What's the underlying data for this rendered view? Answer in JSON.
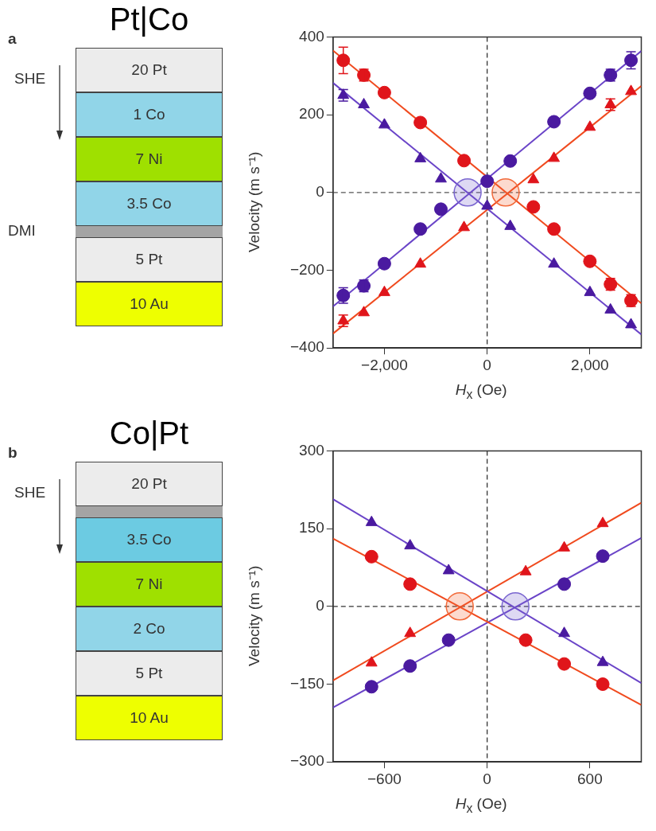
{
  "chart_data": [
    {
      "type": "other",
      "title": "Pt|Co",
      "categories": [
        "20 Pt",
        "1 Co",
        "7 Ni",
        "3.5 Co",
        null,
        "5 Pt",
        "10 Au"
      ],
      "colors": [
        "#ececec",
        "#91d5e8",
        "#9fe000",
        "#91d5e8",
        "#a4a4a4",
        "#ececec",
        "#eeff00"
      ],
      "annotations": [
        "a",
        "SHE",
        "DMI"
      ]
    },
    {
      "type": "scatter",
      "xlabel": "H$_{x}$ (Oe)",
      "ylabel": "Velocity (m s⁻¹)",
      "xlim": [
        -3000,
        3000
      ],
      "ylim": [
        -400,
        400
      ],
      "xticks": [
        {
          "value": -2000,
          "label": "−2,000"
        },
        {
          "value": 0,
          "label": "0"
        },
        {
          "value": 2000,
          "label": "2,000"
        }
      ],
      "yticks": [
        {
          "value": -400,
          "label": "−400"
        },
        {
          "value": -200,
          "label": "−200"
        },
        {
          "value": 0,
          "label": "0"
        },
        200,
        400
      ],
      "ref_lines": [
        {
          "axis": "x",
          "value": 0,
          "line_style": "dashed",
          "color": "#333333"
        },
        {
          "axis": "y",
          "value": 0,
          "line_style": "dashed",
          "color": "#555555"
        }
      ],
      "series": [
        {
          "type": "line",
          "color": "#f04a1e",
          "marker": "none",
          "x": [
            -3000,
            3000
          ],
          "values": [
            365,
            -285
          ]
        },
        {
          "type": "line",
          "color": "#f04a1e",
          "marker": "none",
          "x": [
            -3000,
            3000
          ],
          "values": [
            -363,
            274
          ]
        },
        {
          "type": "line",
          "color": "#6a44c8",
          "marker": "none",
          "x": [
            -3000,
            3000
          ],
          "values": [
            -293,
            364
          ]
        },
        {
          "type": "line",
          "color": "#6a44c8",
          "marker": "none",
          "x": [
            -3000,
            3000
          ],
          "values": [
            282,
            -365
          ]
        },
        {
          "type": "scatter",
          "color": "#e0151b",
          "marker": "circle",
          "x": [
            -2800,
            -2400,
            -2000,
            -1300,
            -450,
            900,
            1300,
            2000,
            2400,
            2800
          ],
          "values": [
            340,
            302,
            257,
            180,
            82,
            -37,
            -94,
            -177,
            -236,
            -278
          ],
          "errors": [
            34,
            15,
            null,
            null,
            null,
            null,
            null,
            null,
            15,
            15
          ]
        },
        {
          "type": "scatter",
          "color": "#e0151b",
          "marker": "triangle",
          "x": [
            -2800,
            -2400,
            -2000,
            -1300,
            -450,
            900,
            1300,
            2000,
            2400,
            2800
          ],
          "values": [
            -330,
            -309,
            -257,
            -184,
            -90,
            33,
            88,
            168,
            226,
            260
          ],
          "errors": [
            15,
            null,
            null,
            null,
            null,
            null,
            null,
            null,
            15,
            null
          ]
        },
        {
          "type": "scatter",
          "color": "#4a1aa0",
          "marker": "circle",
          "x": [
            -2800,
            -2400,
            -2000,
            -1300,
            -900,
            0,
            450,
            1300,
            2000,
            2400,
            2800
          ],
          "values": [
            -265,
            -240,
            -183,
            -94,
            -43,
            29,
            81,
            182,
            255,
            302,
            340
          ],
          "errors": [
            20,
            15,
            null,
            null,
            null,
            null,
            null,
            null,
            null,
            15,
            22
          ]
        },
        {
          "type": "scatter",
          "color": "#4a1aa0",
          "marker": "triangle",
          "x": [
            -2800,
            -2400,
            -2000,
            -1300,
            -900,
            0,
            450,
            1300,
            2000,
            2400,
            2800
          ],
          "values": [
            250,
            226,
            174,
            87,
            35,
            -35,
            -87,
            -184,
            -257,
            -302,
            -340
          ],
          "errors": [
            15,
            null,
            null,
            null,
            null,
            null,
            null,
            null,
            null,
            null,
            null
          ]
        },
        {
          "type": "bubble",
          "color": "#7a66d0",
          "x": [
            -380
          ],
          "values": [
            0
          ],
          "sizes": [
            1
          ]
        },
        {
          "type": "bubble",
          "color": "#f26a3a",
          "x": [
            360
          ],
          "values": [
            0
          ],
          "sizes": [
            1
          ]
        }
      ]
    },
    {
      "type": "other",
      "title": "Co|Pt",
      "categories": [
        "20 Pt",
        null,
        "3.5 Co",
        "7 Ni",
        "2 Co",
        "5 Pt",
        "10 Au"
      ],
      "colors": [
        "#ececec",
        "#a4a4a4",
        "#6ccbe2",
        "#9fe000",
        "#91d5e8",
        "#ececec",
        "#eeff00"
      ],
      "annotations": [
        "b",
        "SHE"
      ]
    },
    {
      "type": "scatter",
      "xlabel": "H$_{x}$ (Oe)",
      "ylabel": "Velocity (m s⁻¹)",
      "xlim": [
        -900,
        900
      ],
      "ylim": [
        -300,
        300
      ],
      "xticks": [
        {
          "value": -600,
          "label": "−600"
        },
        {
          "value": 0,
          "label": "0"
        },
        600
      ],
      "yticks": [
        {
          "value": -300,
          "label": "−300"
        },
        {
          "value": -150,
          "label": "−150"
        },
        {
          "value": 0,
          "label": "0"
        },
        150,
        300
      ],
      "ref_lines": [
        {
          "axis": "x",
          "value": 0,
          "line_style": "dashed",
          "color": "#333333"
        },
        {
          "axis": "y",
          "value": 0,
          "line_style": "dashed",
          "color": "#333333"
        }
      ],
      "series": [
        {
          "type": "line",
          "color": "#6a44c8",
          "marker": "none",
          "x": [
            -900,
            900
          ],
          "values": [
            207,
            -148
          ]
        },
        {
          "type": "line",
          "color": "#f04a1e",
          "marker": "none",
          "x": [
            -900,
            900
          ],
          "values": [
            131,
            -190
          ]
        },
        {
          "type": "line",
          "color": "#f04a1e",
          "marker": "none",
          "x": [
            -900,
            900
          ],
          "values": [
            -143,
            200
          ]
        },
        {
          "type": "line",
          "color": "#6a44c8",
          "marker": "none",
          "x": [
            -900,
            900
          ],
          "values": [
            -195,
            132
          ]
        },
        {
          "type": "scatter",
          "color": "#4a1aa0",
          "marker": "triangle",
          "x": [
            -675,
            -450,
            -225,
            450,
            675
          ],
          "values": [
            162,
            117,
            69,
            -52,
            -108
          ]
        },
        {
          "type": "scatter",
          "color": "#e0151b",
          "marker": "circle",
          "x": [
            -675,
            -450,
            225,
            450,
            675
          ],
          "values": [
            96,
            43,
            -65,
            -111,
            -150
          ]
        },
        {
          "type": "scatter",
          "color": "#e0151b",
          "marker": "triangle",
          "x": [
            -675,
            -450,
            225,
            450,
            675
          ],
          "values": [
            -109,
            -52,
            67,
            113,
            160
          ]
        },
        {
          "type": "scatter",
          "color": "#4a1aa0",
          "marker": "circle",
          "x": [
            -675,
            -450,
            -225,
            450,
            675
          ],
          "values": [
            -155,
            -115,
            -65,
            43,
            97
          ]
        },
        {
          "type": "bubble",
          "color": "#f26a3a",
          "x": [
            -160
          ],
          "values": [
            0
          ],
          "sizes": [
            1
          ]
        },
        {
          "type": "bubble",
          "color": "#7a66d0",
          "x": [
            165
          ],
          "values": [
            0
          ],
          "sizes": [
            1
          ]
        }
      ]
    }
  ]
}
